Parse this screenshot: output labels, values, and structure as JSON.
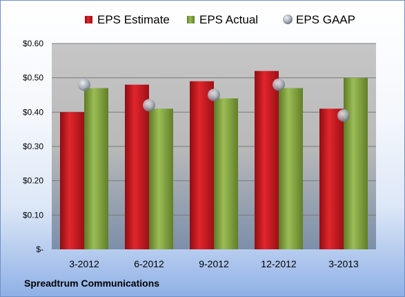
{
  "chart_data": {
    "type": "bar",
    "categories": [
      "3-2012",
      "6-2012",
      "9-2012",
      "12-2012",
      "3-2013"
    ],
    "series": [
      {
        "name": "EPS Estimate",
        "kind": "bar",
        "color": "#c0181e",
        "values": [
          0.4,
          0.48,
          0.49,
          0.52,
          0.41
        ]
      },
      {
        "name": "EPS Actual",
        "kind": "bar",
        "color": "#7ea03c",
        "values": [
          0.47,
          0.41,
          0.44,
          0.47,
          0.5
        ]
      },
      {
        "name": "EPS GAAP",
        "kind": "marker",
        "color": "#a7aeb8",
        "values": [
          0.48,
          0.42,
          0.45,
          0.48,
          0.39
        ]
      }
    ],
    "y_ticks": [
      {
        "value": 0.0,
        "label": "$-"
      },
      {
        "value": 0.1,
        "label": "$0.10"
      },
      {
        "value": 0.2,
        "label": "$0.20"
      },
      {
        "value": 0.3,
        "label": "$0.30"
      },
      {
        "value": 0.4,
        "label": "$0.40"
      },
      {
        "value": 0.5,
        "label": "$0.50"
      },
      {
        "value": 0.6,
        "label": "$0.60"
      }
    ],
    "ylim": [
      0,
      0.6
    ],
    "grid": true,
    "legend_position": "top"
  },
  "footer": {
    "company": "Spreadtrum Communications"
  }
}
